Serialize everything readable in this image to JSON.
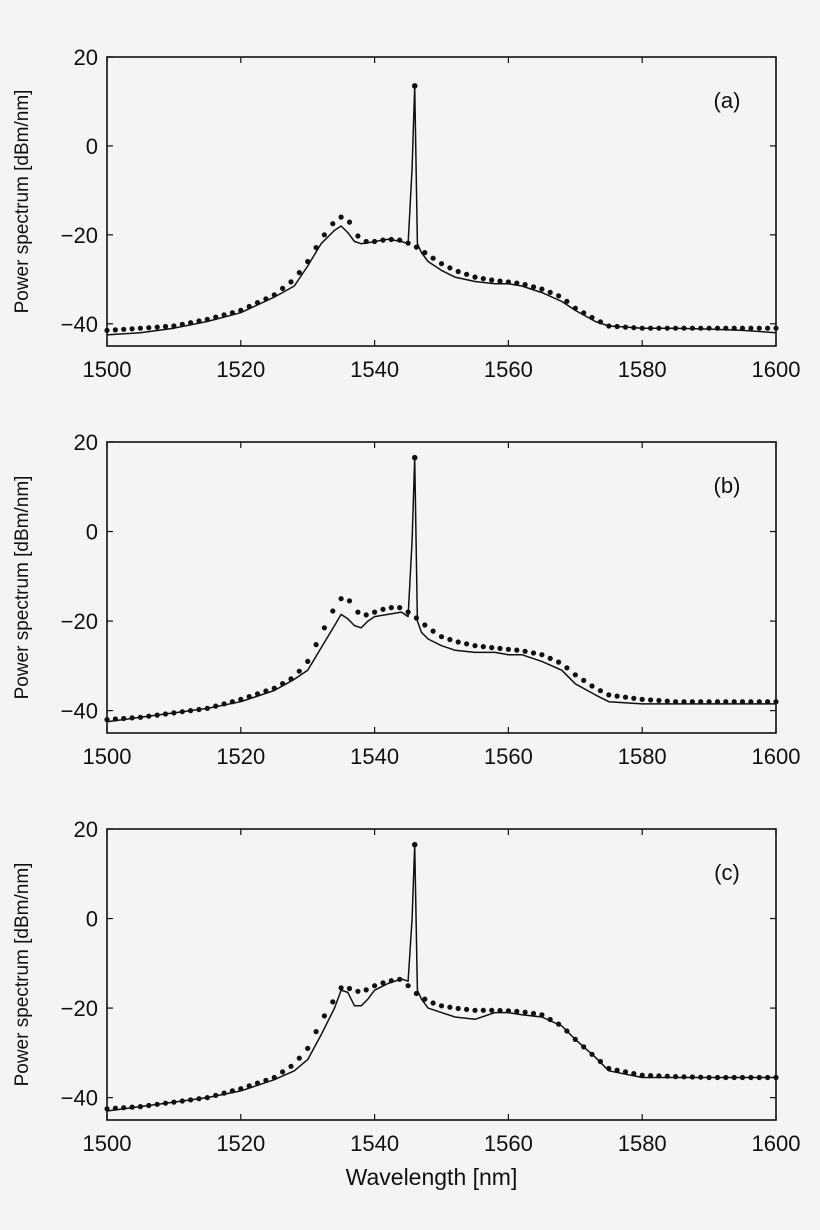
{
  "chart_data": [
    {
      "type": "line",
      "panel_label": "(a)",
      "ylabel": "Power spectrum [dBm/nm]",
      "xlabel": "",
      "xlim": [
        1500,
        1600
      ],
      "ylim": [
        -45,
        20
      ],
      "xticks": [
        "1500",
        "1520",
        "1540",
        "1560",
        "1580",
        "1600"
      ],
      "yticks": [
        "20",
        "0",
        "−20",
        "−40"
      ],
      "series": [
        {
          "style": "solid",
          "x": [
            1500,
            1505,
            1510,
            1515,
            1520,
            1525,
            1528,
            1530,
            1532,
            1534,
            1535,
            1536,
            1537,
            1538,
            1539,
            1540,
            1542,
            1544,
            1545,
            1545.6,
            1546,
            1546.4,
            1547,
            1548,
            1550,
            1552,
            1555,
            1558,
            1560,
            1562,
            1565,
            1568,
            1570,
            1573,
            1575,
            1580,
            1585,
            1590,
            1595,
            1600
          ],
          "y": [
            -42.5,
            -42,
            -41,
            -39.5,
            -37.5,
            -34,
            -31.5,
            -27,
            -22,
            -19,
            -18,
            -19.5,
            -21.5,
            -22,
            -21.8,
            -21.5,
            -21,
            -21.5,
            -22,
            -5,
            13.5,
            -22,
            -24,
            -26,
            -28,
            -29.5,
            -30.5,
            -31,
            -31,
            -31.5,
            -33,
            -35,
            -37,
            -39.5,
            -40.5,
            -41,
            -41,
            -41.2,
            -41.5,
            -42
          ]
        },
        {
          "style": "dotted",
          "x": [
            1500,
            1505,
            1510,
            1515,
            1520,
            1525,
            1528,
            1530,
            1532,
            1534,
            1535,
            1536,
            1537,
            1538,
            1540,
            1542,
            1544,
            1546,
            1548,
            1550,
            1552,
            1555,
            1558,
            1560,
            1562,
            1565,
            1568,
            1570,
            1573,
            1575,
            1580,
            1585,
            1590,
            1595,
            1600
          ],
          "y": [
            -41.5,
            -41,
            -40.5,
            -39,
            -37,
            -33.5,
            -30,
            -26,
            -21,
            -17,
            -16,
            -16.5,
            -19,
            -21.5,
            -21.5,
            -21,
            -21.2,
            -22.5,
            -24.5,
            -26.5,
            -28,
            -29.5,
            -30.3,
            -30.6,
            -31,
            -32.2,
            -34,
            -36.5,
            -39,
            -40.5,
            -41,
            -41,
            -41,
            -41,
            -41
          ]
        }
      ]
    },
    {
      "type": "line",
      "panel_label": "(b)",
      "ylabel": "Power spectrum [dBm/nm]",
      "xlabel": "",
      "xlim": [
        1500,
        1600
      ],
      "ylim": [
        -45,
        20
      ],
      "xticks": [
        "1500",
        "1520",
        "1540",
        "1560",
        "1580",
        "1600"
      ],
      "yticks": [
        "20",
        "0",
        "−20",
        "−40"
      ],
      "series": [
        {
          "style": "solid",
          "x": [
            1500,
            1505,
            1510,
            1515,
            1520,
            1525,
            1528,
            1530,
            1532,
            1534,
            1535,
            1536,
            1537,
            1538,
            1539,
            1540,
            1542,
            1544,
            1545,
            1545.6,
            1546,
            1546.4,
            1547,
            1548,
            1550,
            1552,
            1555,
            1558,
            1560,
            1562,
            1565,
            1568,
            1570,
            1573,
            1575,
            1580,
            1585,
            1590,
            1595,
            1600
          ],
          "y": [
            -42.5,
            -41.5,
            -40.5,
            -39.5,
            -38,
            -35.5,
            -33,
            -31,
            -26,
            -21,
            -18.5,
            -19.5,
            -21,
            -21.5,
            -20,
            -19,
            -18.5,
            -18,
            -19,
            -2,
            16.5,
            -20,
            -22.5,
            -24,
            -25.5,
            -26.5,
            -27,
            -27,
            -27.5,
            -27.5,
            -29,
            -31,
            -34,
            -36.5,
            -38,
            -38.5,
            -38.5,
            -38.5,
            -38.5,
            -38.5
          ]
        },
        {
          "style": "dotted",
          "x": [
            1500,
            1505,
            1510,
            1515,
            1520,
            1525,
            1528,
            1530,
            1532,
            1534,
            1535,
            1536,
            1537,
            1538,
            1540,
            1542,
            1544,
            1546,
            1548,
            1550,
            1552,
            1555,
            1558,
            1560,
            1562,
            1565,
            1568,
            1570,
            1573,
            1575,
            1580,
            1585,
            1590,
            1595,
            1600
          ],
          "y": [
            -42,
            -41.5,
            -40.5,
            -39.5,
            -37.5,
            -35,
            -32.5,
            -29,
            -23,
            -17,
            -15,
            -15,
            -17,
            -19,
            -18,
            -17,
            -17,
            -19,
            -21.5,
            -23.5,
            -24.5,
            -25.5,
            -26,
            -26.3,
            -26.6,
            -27.5,
            -29.5,
            -32,
            -35,
            -36.5,
            -37.5,
            -38,
            -38,
            -38,
            -38
          ]
        }
      ]
    },
    {
      "type": "line",
      "panel_label": "(c)",
      "ylabel": "Power spectrum [dBm/nm]",
      "xlabel": "Wavelength [nm]",
      "xlim": [
        1500,
        1600
      ],
      "ylim": [
        -45,
        20
      ],
      "xticks": [
        "1500",
        "1520",
        "1540",
        "1560",
        "1580",
        "1600"
      ],
      "yticks": [
        "20",
        "0",
        "−20",
        "−40"
      ],
      "series": [
        {
          "style": "solid",
          "x": [
            1500,
            1505,
            1510,
            1515,
            1520,
            1525,
            1528,
            1530,
            1532,
            1534,
            1535,
            1536,
            1537,
            1538,
            1539,
            1540,
            1542,
            1544,
            1545,
            1545.6,
            1546,
            1546.4,
            1547,
            1548,
            1550,
            1552,
            1555,
            1558,
            1560,
            1562,
            1565,
            1568,
            1570,
            1573,
            1575,
            1580,
            1585,
            1590,
            1595,
            1600
          ],
          "y": [
            -43,
            -42,
            -41,
            -40,
            -38.5,
            -36,
            -34,
            -31.5,
            -26,
            -20,
            -16,
            -16.5,
            -19.5,
            -19.5,
            -18,
            -16,
            -14.5,
            -13.5,
            -14,
            0,
            16.5,
            -16,
            -18,
            -20,
            -21,
            -22,
            -22.5,
            -21,
            -21,
            -21.5,
            -22,
            -24,
            -27,
            -31,
            -34,
            -35.5,
            -35.5,
            -35.5,
            -35.5,
            -35.5
          ]
        },
        {
          "style": "dotted",
          "x": [
            1500,
            1505,
            1510,
            1515,
            1520,
            1525,
            1528,
            1530,
            1532,
            1534,
            1535,
            1536,
            1537,
            1538,
            1540,
            1542,
            1544,
            1546,
            1548,
            1550,
            1552,
            1555,
            1558,
            1560,
            1562,
            1565,
            1568,
            1570,
            1573,
            1575,
            1580,
            1585,
            1590,
            1595,
            1600
          ],
          "y": [
            -42.5,
            -42,
            -41,
            -40,
            -38,
            -35.5,
            -32.5,
            -29,
            -23,
            -18,
            -15.5,
            -15.5,
            -16,
            -16.5,
            -15,
            -14,
            -13.5,
            -16.5,
            -18.5,
            -19.5,
            -20,
            -20.5,
            -20.5,
            -20.6,
            -20.8,
            -21.5,
            -24,
            -27,
            -31,
            -33.5,
            -35,
            -35.3,
            -35.5,
            -35.5,
            -35.5
          ]
        }
      ]
    }
  ]
}
